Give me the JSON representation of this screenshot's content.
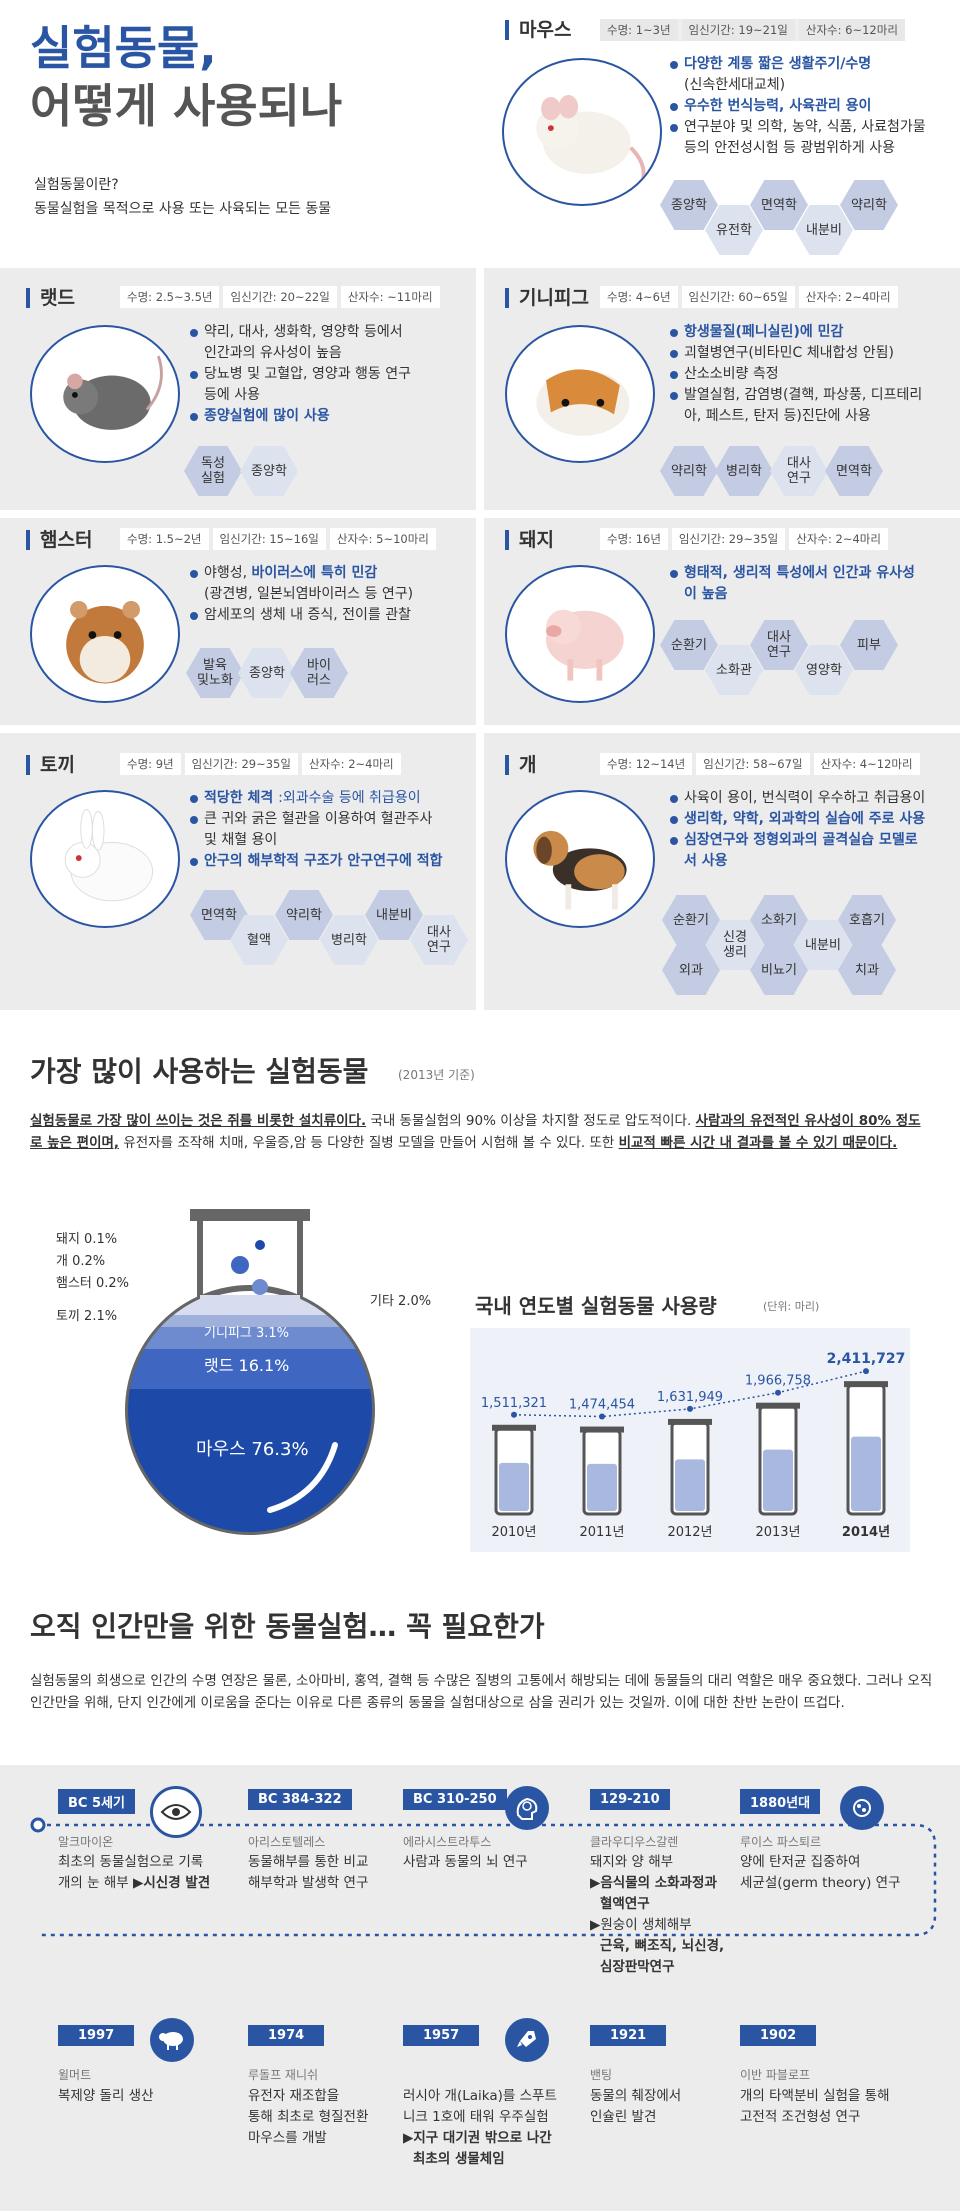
{
  "header": {
    "title1": "실험동물,",
    "title2": "어떻게 사용되나",
    "q": "실험동물이란?",
    "def": "동물실험을 목적으로 사용 또는 사육되는 모든 동물"
  },
  "mouse": {
    "name": "마우스",
    "lifespan": "수명: 1~3년",
    "gest": "임신기간: 19~21일",
    "litter": "산자수: 6~12마리",
    "b1": "다양한 계통 짧은 생활주기/수명",
    "b1c": "(신속한세대교체)",
    "b2": "우수한 번식능력, 사육관리 용이",
    "b3": "연구분야 및 의학, 농약, 식품, 사료첨가물",
    "b3c": "등의 안전성시험 등 광범위하게 사용",
    "t1": "종양학",
    "t2": "유전학",
    "t3": "면역학",
    "t4": "내분비",
    "t5": "약리학"
  },
  "rat": {
    "name": "랫드",
    "lifespan": "수명: 2.5~3.5년",
    "gest": "임신기간: 20~22일",
    "litter": "산자수: ~11마리",
    "b1": "약리, 대사, 생화학, 영양학 등에서",
    "b1c": "인간과의 유사성이 높음",
    "b2": "당뇨병 및 고혈압, 영양과 행동 연구",
    "b2c": "등에 사용",
    "b3": "종양실험에 많이 사용",
    "t1": "독성\n실험",
    "t2": "종양학"
  },
  "guinea": {
    "name": "기니피그",
    "lifespan": "수명: 4~6년",
    "gest": "임신기간: 60~65일",
    "litter": "산자수: 2~4마리",
    "b1": "항생물질(페니실린)에 민감",
    "b2": "괴혈병연구(비타민C 체내합성 안됨)",
    "b3": "산소소비량 측정",
    "b4": "발열실험, 감염병(결핵, 파상풍, 디프테리",
    "b4c": "아, 페스트, 탄저 등)진단에 사용",
    "t1": "약리학",
    "t2": "병리학",
    "t3": "대사\n연구",
    "t4": "면역학"
  },
  "hamster": {
    "name": "햄스터",
    "lifespan": "수명: 1.5~2년",
    "gest": "임신기간: 15~16일",
    "litter": "산자수: 5~10마리",
    "b1a": "야행성, ",
    "b1b": "바이러스에 특히 민감",
    "b1c": "(광견병, 일본뇌염바이러스 등 연구)",
    "b2": "암세포의 생체 내 증식, 전이를 관찰",
    "t1": "발육\n및노화",
    "t2": "종양학",
    "t3": "바이\n러스"
  },
  "pig": {
    "name": "돼지",
    "lifespan": "수명: 16년",
    "gest": "임신기간: 29~35일",
    "litter": "산자수: 2~4마리",
    "b1": "형태적, 생리적 특성에서 인간과 유사성",
    "b1c": "이 높음",
    "t1": "순환기",
    "t2": "소화관",
    "t3": "대사\n연구",
    "t4": "영양학",
    "t5": "피부"
  },
  "rabbit": {
    "name": "토끼",
    "lifespan": "수명: 9년",
    "gest": "임신기간: 29~35일",
    "litter": "산자수: 2~4마리",
    "b1a": "적당한 체격 ",
    "b1b": ":외과수술 등에 취급용이",
    "b2": "큰 귀와 굵은 혈관을 이용하여 혈관주사",
    "b2c": "및 채혈 용이",
    "b3": "안구의 해부학적 구조가 안구연구에 적합",
    "t1": "면역학",
    "t2": "혈액",
    "t3": "약리학",
    "t4": "병리학",
    "t5": "내분비",
    "t6": "대사\n연구"
  },
  "dog": {
    "name": "개",
    "lifespan": "수명: 12~14년",
    "gest": "임신기간: 58~67일",
    "litter": "산자수: 4~12마리",
    "b1": "사육이 용이, 번식력이 우수하고 취급용이",
    "b2": "생리학, 약학, 외과학의 실습에 주로 사용",
    "b3": "심장연구와 정형외과의 골격실습 모델로",
    "b3c": "서 사용",
    "t1": "순환기",
    "t2": "외과",
    "t3": "신경\n생리",
    "t4": "소화기",
    "t5": "비뇨기",
    "t6": "내분비",
    "t7": "호흡기",
    "t8": "치과"
  },
  "usage": {
    "title": "가장 많이 사용하는 실험동물",
    "sub": "(2013년 기준)",
    "p1": "실험동물로 가장 많이 쓰이는 것은 쥐를 비롯한 설치류이다.",
    "p2": " 국내 동물실험의 90% 이상을 차지할 정도로 압도적이다. ",
    "p3": "사람과의 유전적인 유사성이 80% 정도로 높은 편이며,",
    "p4": " 유전자를 조작해 치매, 우울증,암 등 다양한 질병 모델을 만들어 시험해 볼 수 있다. 또한 ",
    "p5": "비교적 빠른 시간 내 결과를 볼 수 있기 때문이다."
  },
  "flask": {
    "pig": "돼지 0.1%",
    "dog": "개 0.2%",
    "hamster": "햄스터 0.2%",
    "rabbit": "토끼 2.1%",
    "other": "기타 2.0%",
    "guinea": "기니피그 3.1%",
    "rat": "랫드 16.1%",
    "mouse": "마우스 76.3%"
  },
  "chart_data": {
    "type": "bar",
    "title": "국내 연도별 실험동물 사용량",
    "unit": "(단위: 마리)",
    "categories": [
      "2010년",
      "2011년",
      "2012년",
      "2013년",
      "2014년"
    ],
    "values": [
      1511321,
      1474454,
      1631949,
      1966758,
      2411727
    ],
    "value_labels": [
      "1,511,321",
      "1,474,454",
      "1,631,949",
      "1,966,758",
      "2,411,727"
    ]
  },
  "ethics": {
    "title": "오직 인간만을 위한 동물실험… 꼭 필요한가",
    "body": "실험동물의 희생으로 인간의 수명 연장은 물론, 소아마비, 홍역, 결핵 등  수많은 질병의 고통에서 해방되는 데에 동물들의 대리 역할은 매우 중요했다. 그러나 오직 인간만을 위해, 단지 인간에게 이로움을 준다는 이유로 다른 종류의 동물을 실험대상으로 삼을 권리가 있는 것일까. 이에 대한 찬반 논란이 뜨겁다."
  },
  "timeline": {
    "e1": {
      "tag": "BC 5세기",
      "name": "알크마이온",
      "l1": "최초의 동물실험으로 기록",
      "l2": "개의 눈 해부 ",
      "l2b": "▶시신경 발견"
    },
    "e2": {
      "tag": "BC 384-322",
      "name": "아리스토텔레스",
      "l1": "동물해부를 통한 비교",
      "l2": "해부학과 발생학 연구"
    },
    "e3": {
      "tag": "BC 310-250",
      "name": "에라시스트라투스",
      "l1": "사람과 동물의 뇌 연구"
    },
    "e4": {
      "tag": "129-210",
      "name": "클라우디우스갈렌",
      "l1": "돼지와 양 해부",
      "l2": "▶음식물의 소화과정과",
      "l3": "혈액연구",
      "l4": "▶원숭이 생체해부",
      "l5": "근육, 뼈조직, 뇌신경,",
      "l6": "심장판막연구"
    },
    "e5": {
      "tag": "1880년대",
      "name": "루이스 파스퇴르",
      "l1": "양에 탄저균 집중하여",
      "l2": "세균설(germ theory) 연구"
    },
    "e6": {
      "tag": "1997",
      "name": "윌머트",
      "l1": "복제양 돌리 생산"
    },
    "e7": {
      "tag": "1974",
      "name": "루돌프 재니쉬",
      "l1": "유전자 재조합을",
      "l2": "통해 최초로 형질전환",
      "l3": "마우스를 개발"
    },
    "e8": {
      "tag": "1957",
      "name": "",
      "l1": "러시아 개(Laika)를 스푸트",
      "l2": "니크 1호에 태워 우주실험",
      "l3": "▶지구 대기권 밖으로 나간",
      "l4": "최초의 생물체임"
    },
    "e9": {
      "tag": "1921",
      "name": "밴팅",
      "l1": "동물의 췌장에서",
      "l2": "인슐린 발견"
    },
    "e10": {
      "tag": "1902",
      "name": "이반 파블로프",
      "l1": "개의 타액분비 실험을 통해",
      "l2": "고전적 조건형성 연구"
    }
  },
  "colors": {
    "accent": "#2a55a3",
    "band": "#ececec",
    "hex": "#c3cce3"
  }
}
